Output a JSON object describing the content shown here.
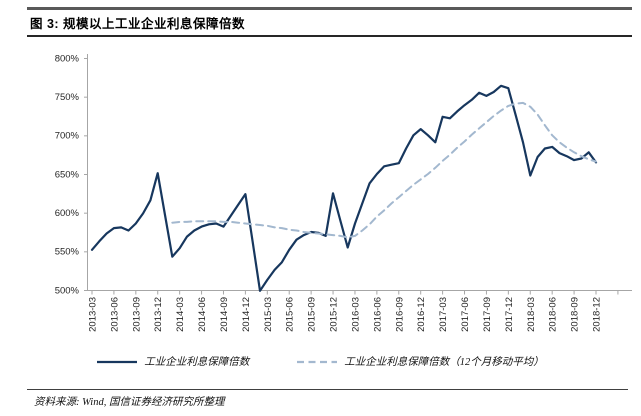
{
  "header": {
    "title": "图 3: 规模以上工业企业利息保障倍数"
  },
  "footer": {
    "source": "资料来源: Wind, 国信证券经济研究所整理"
  },
  "colors": {
    "primary_line": "#17375e",
    "ma_line": "#a3b8cf",
    "axis": "#a6a6a6",
    "tick_text": "#262626"
  },
  "chart_data": {
    "type": "line",
    "title": "规模以上工业企业利息保障倍数",
    "x_start": "2013-03",
    "x_end": "2018-12",
    "x_frequency": "monthly",
    "xtick_labels": [
      "2013-03",
      "2013-06",
      "2013-09",
      "2013-12",
      "2014-03",
      "2014-06",
      "2014-09",
      "2014-12",
      "2015-03",
      "2015-06",
      "2015-09",
      "2015-12",
      "2016-03",
      "2016-06",
      "2016-09",
      "2016-12",
      "2017-03",
      "2017-06",
      "2017-09",
      "2017-12",
      "2018-03",
      "2018-06",
      "2018-09",
      "2018-12"
    ],
    "ytick_labels": [
      "500%",
      "550%",
      "600%",
      "650%",
      "700%",
      "750%",
      "800%"
    ],
    "yticks": [
      500,
      550,
      600,
      650,
      700,
      750,
      800
    ],
    "ylim": [
      500,
      800
    ],
    "y_unit": "%",
    "grid": false,
    "legend_position": "bottom",
    "series": [
      {
        "name": "工业企业利息保障倍数",
        "style": "solid",
        "color": "#17375e",
        "start_month_offset": 0,
        "values": [
          552,
          563,
          573,
          580,
          581,
          577,
          586,
          599,
          616,
          651,
          597,
          543,
          554,
          569,
          577,
          582,
          585,
          586,
          582,
          596,
          610,
          624,
          562,
          499,
          513,
          526,
          536,
          552,
          565,
          571,
          575,
          574,
          570,
          625,
          590,
          555,
          586,
          612,
          638,
          650,
          660,
          662,
          664,
          683,
          700,
          708,
          700,
          691,
          724,
          722,
          731,
          739,
          746,
          755,
          751,
          756,
          764,
          761,
          726,
          691,
          648,
          672,
          683,
          685,
          677,
          673,
          668,
          670,
          678,
          665
        ]
      },
      {
        "name": "工业企业利息保障倍数（12个月移动平均）",
        "style": "dashed",
        "color": "#a3b8cf",
        "start_month_offset": 11,
        "values": [
          587,
          588,
          588,
          589,
          589,
          589,
          589,
          588,
          588,
          587,
          586,
          585,
          584,
          583,
          581,
          580,
          578,
          577,
          575,
          574,
          573,
          572,
          571,
          570,
          568,
          570,
          577,
          585,
          595,
          603,
          612,
          620,
          628,
          636,
          643,
          650,
          658,
          667,
          675,
          684,
          692,
          701,
          709,
          717,
          725,
          732,
          738,
          741,
          742,
          737,
          727,
          713,
          700,
          691,
          684,
          678,
          673,
          669,
          666
        ]
      }
    ]
  }
}
